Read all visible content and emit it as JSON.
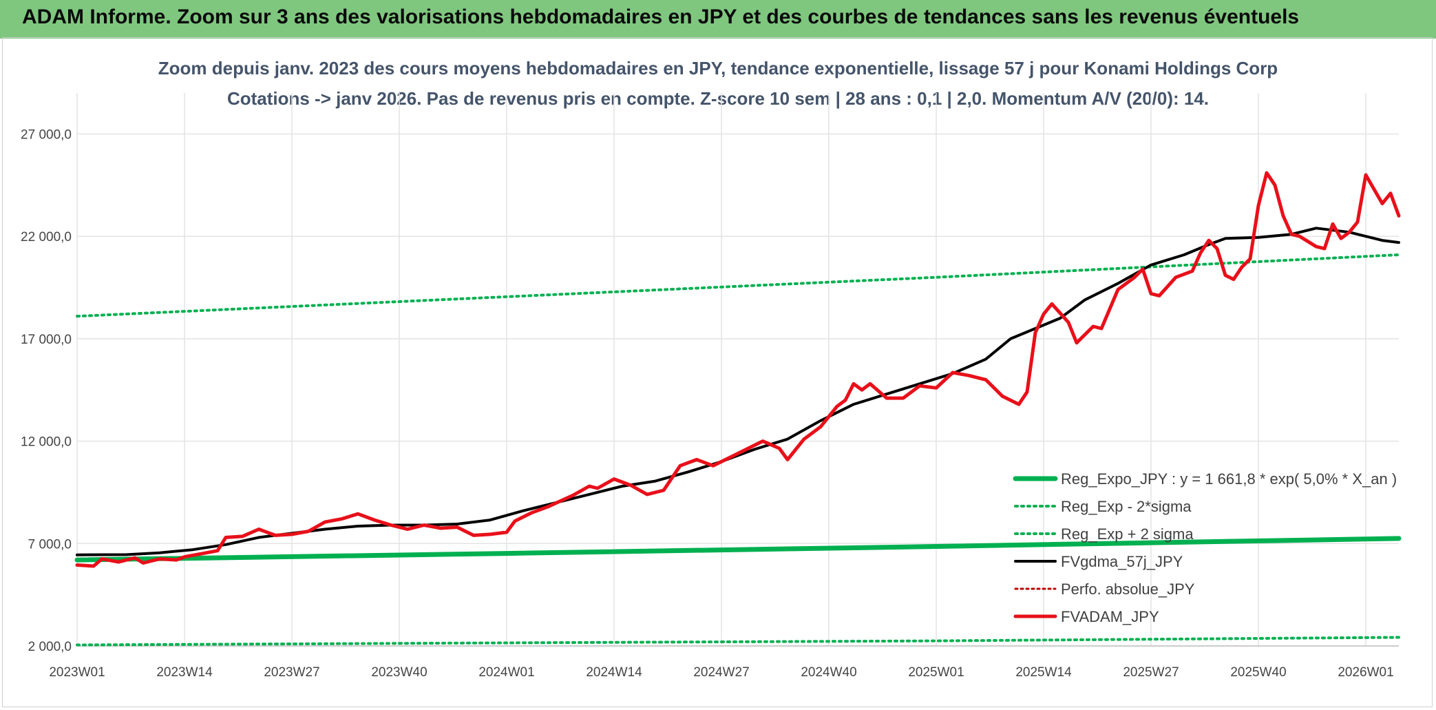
{
  "banner": {
    "text": "ADAM Informe. Zoom sur 3 ans des valorisations hebdomadaires en JPY et des courbes de tendances sans les revenus éventuels"
  },
  "chart_data": {
    "type": "line",
    "title": "Zoom depuis janv. 2023 des cours moyens hebdomadaires en JPY, tendance exponentielle, lissage 57 j pour Konami Holdings Corp",
    "subtitle": "Cotations -> janv 2026. Pas de revenus pris en compte. Z-score 10 sem | 28 ans : 0,1 | 2,0. Momentum A/V (20/0): 14.",
    "xlabel": "",
    "ylabel": "",
    "ylim": [
      2000,
      29000
    ],
    "y_ticks": [
      2000,
      7000,
      12000,
      17000,
      22000,
      27000
    ],
    "y_tick_labels": [
      "2 000,0",
      "7 000,0",
      "12 000,0",
      "17 000,0",
      "22 000,0",
      "27 000,0"
    ],
    "x_range": [
      0,
      160
    ],
    "x_ticks": [
      0,
      13,
      26,
      39,
      52,
      65,
      78,
      91,
      104,
      117,
      130,
      143,
      156
    ],
    "x_tick_labels": [
      "2023W01",
      "2023W14",
      "2023W27",
      "2023W40",
      "2024W01",
      "2024W14",
      "2024W27",
      "2024W40",
      "2025W01",
      "2025W14",
      "2025W27",
      "2025W40",
      "2026W01"
    ],
    "series": [
      {
        "name": "Reg_Expo_JPY : y = 1 661,8 * exp( 5,0% *  X_an )",
        "color": "#00b050",
        "style": "solid-thick",
        "points": [
          [
            0,
            6200
          ],
          [
            52,
            6520
          ],
          [
            104,
            6860
          ],
          [
            160,
            7250
          ]
        ]
      },
      {
        "name": "Reg_Exp - 2*sigma",
        "color": "#00b050",
        "style": "dotted",
        "points": [
          [
            0,
            2050
          ],
          [
            52,
            2150
          ],
          [
            104,
            2250
          ],
          [
            160,
            2420
          ]
        ]
      },
      {
        "name": "Reg_Exp + 2 sigma",
        "color": "#00b050",
        "style": "dotted",
        "points": [
          [
            0,
            18100
          ],
          [
            52,
            19050
          ],
          [
            104,
            20000
          ],
          [
            160,
            21100
          ]
        ]
      },
      {
        "name": "FVgdma_57j_JPY",
        "color": "#000000",
        "style": "solid",
        "points": [
          [
            0,
            6450
          ],
          [
            6,
            6460
          ],
          [
            10,
            6550
          ],
          [
            14,
            6700
          ],
          [
            18,
            6950
          ],
          [
            22,
            7300
          ],
          [
            26,
            7500
          ],
          [
            30,
            7700
          ],
          [
            34,
            7850
          ],
          [
            38,
            7900
          ],
          [
            42,
            7900
          ],
          [
            46,
            7950
          ],
          [
            50,
            8150
          ],
          [
            54,
            8600
          ],
          [
            58,
            9000
          ],
          [
            62,
            9400
          ],
          [
            66,
            9800
          ],
          [
            70,
            10050
          ],
          [
            74,
            10500
          ],
          [
            78,
            11000
          ],
          [
            82,
            11600
          ],
          [
            86,
            12100
          ],
          [
            90,
            13000
          ],
          [
            94,
            13800
          ],
          [
            98,
            14300
          ],
          [
            102,
            14800
          ],
          [
            106,
            15300
          ],
          [
            110,
            16000
          ],
          [
            113,
            17000
          ],
          [
            116,
            17500
          ],
          [
            119,
            18000
          ],
          [
            122,
            18900
          ],
          [
            126,
            19700
          ],
          [
            130,
            20600
          ],
          [
            134,
            21100
          ],
          [
            137,
            21600
          ],
          [
            139,
            21900
          ],
          [
            143,
            21950
          ],
          [
            147,
            22100
          ],
          [
            150,
            22400
          ],
          [
            154,
            22200
          ],
          [
            158,
            21800
          ],
          [
            160,
            21700
          ]
        ]
      },
      {
        "name": "Perfo. absolue_JPY",
        "color": "#c00000",
        "style": "dotted-thin",
        "points": []
      },
      {
        "name": "FVADAM_JPY",
        "color": "#e8101a",
        "style": "solid-thick",
        "points": [
          [
            0,
            5950
          ],
          [
            2,
            5900
          ],
          [
            3,
            6250
          ],
          [
            5,
            6100
          ],
          [
            7,
            6300
          ],
          [
            8,
            6050
          ],
          [
            10,
            6250
          ],
          [
            12,
            6200
          ],
          [
            13,
            6350
          ],
          [
            15,
            6500
          ],
          [
            17,
            6650
          ],
          [
            18,
            7300
          ],
          [
            20,
            7350
          ],
          [
            22,
            7700
          ],
          [
            24,
            7400
          ],
          [
            26,
            7450
          ],
          [
            28,
            7600
          ],
          [
            30,
            8050
          ],
          [
            32,
            8200
          ],
          [
            34,
            8450
          ],
          [
            36,
            8150
          ],
          [
            38,
            7900
          ],
          [
            40,
            7700
          ],
          [
            42,
            7900
          ],
          [
            44,
            7750
          ],
          [
            46,
            7800
          ],
          [
            48,
            7400
          ],
          [
            50,
            7450
          ],
          [
            52,
            7550
          ],
          [
            53,
            8100
          ],
          [
            55,
            8500
          ],
          [
            57,
            8800
          ],
          [
            60,
            9350
          ],
          [
            62,
            9800
          ],
          [
            63,
            9700
          ],
          [
            65,
            10150
          ],
          [
            67,
            9850
          ],
          [
            69,
            9400
          ],
          [
            71,
            9600
          ],
          [
            73,
            10800
          ],
          [
            75,
            11100
          ],
          [
            77,
            10800
          ],
          [
            79,
            11200
          ],
          [
            81,
            11600
          ],
          [
            83,
            12000
          ],
          [
            85,
            11650
          ],
          [
            86,
            11100
          ],
          [
            88,
            12100
          ],
          [
            90,
            12700
          ],
          [
            92,
            13700
          ],
          [
            93,
            14000
          ],
          [
            94,
            14800
          ],
          [
            95,
            14500
          ],
          [
            96,
            14800
          ],
          [
            98,
            14100
          ],
          [
            100,
            14100
          ],
          [
            102,
            14700
          ],
          [
            104,
            14600
          ],
          [
            106,
            15350
          ],
          [
            108,
            15200
          ],
          [
            110,
            15000
          ],
          [
            112,
            14200
          ],
          [
            114,
            13800
          ],
          [
            115,
            14400
          ],
          [
            116,
            17300
          ],
          [
            117,
            18200
          ],
          [
            118,
            18700
          ],
          [
            120,
            17800
          ],
          [
            121,
            16800
          ],
          [
            123,
            17600
          ],
          [
            124,
            17500
          ],
          [
            126,
            19400
          ],
          [
            128,
            20000
          ],
          [
            129,
            20400
          ],
          [
            130,
            19200
          ],
          [
            131,
            19100
          ],
          [
            133,
            20000
          ],
          [
            135,
            20300
          ],
          [
            136,
            21200
          ],
          [
            137,
            21800
          ],
          [
            138,
            21400
          ],
          [
            139,
            20100
          ],
          [
            140,
            19900
          ],
          [
            141,
            20500
          ],
          [
            142,
            20900
          ],
          [
            143,
            23500
          ],
          [
            144,
            25100
          ],
          [
            145,
            24500
          ],
          [
            146,
            23000
          ],
          [
            147,
            22100
          ],
          [
            148,
            22000
          ],
          [
            150,
            21500
          ],
          [
            151,
            21400
          ],
          [
            152,
            22600
          ],
          [
            153,
            21900
          ],
          [
            154,
            22200
          ],
          [
            155,
            22700
          ],
          [
            156,
            25000
          ],
          [
            158,
            23600
          ],
          [
            159,
            24100
          ],
          [
            160,
            23000
          ]
        ]
      }
    ],
    "legend_labels": [
      "Reg_Expo_JPY : y = 1 661,8 * exp( 5,0% *  X_an )",
      "Reg_Exp - 2*sigma",
      "Reg_Exp + 2 sigma",
      "FVgdma_57j_JPY",
      "Perfo. absolue_JPY",
      "FVADAM_JPY"
    ],
    "legend_position": "bottom-right"
  }
}
